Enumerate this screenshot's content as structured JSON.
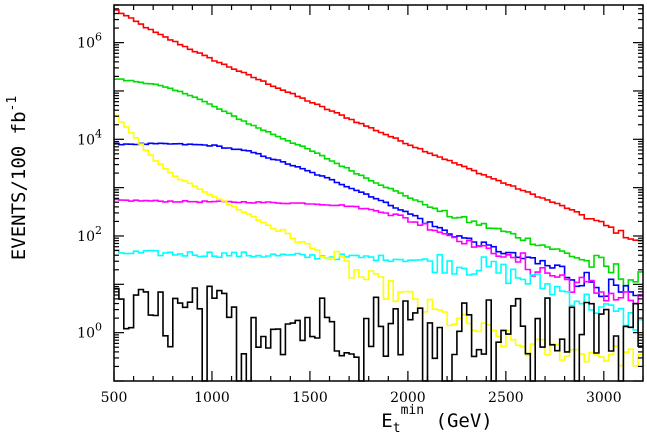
{
  "chart_data": {
    "type": "line",
    "title": "",
    "xlabel": {
      "base": "E",
      "sub": "t",
      "sup": "min",
      "unit": " (GeV)"
    },
    "ylabel": "EVENTS/100 fb",
    "ylabel_sup": "-1",
    "xlim": [
      500,
      3200
    ],
    "ylim": [
      0.1,
      6000000
    ],
    "yscale": "log",
    "x_ticks": [
      500,
      1000,
      1500,
      2000,
      2500,
      3000
    ],
    "x_tick_labels": [
      "500",
      "1000",
      "1500",
      "2000",
      "2500",
      "3000"
    ],
    "y_ticks": [
      1,
      100,
      10000,
      1000000
    ],
    "y_tick_labels": [
      {
        "base": "10",
        "exp": "0"
      },
      {
        "base": "10",
        "exp": "2"
      },
      {
        "base": "10",
        "exp": "4"
      },
      {
        "base": "10",
        "exp": "6"
      }
    ],
    "grid": false,
    "legend": "none",
    "bin_width_gev": 25,
    "series": [
      {
        "color": "#ff0000",
        "kind": "decay",
        "points": [
          [
            500,
            5000000
          ],
          [
            700,
            1700000
          ],
          [
            1000,
            450000
          ],
          [
            1500,
            60000
          ],
          [
            2000,
            8000
          ],
          [
            2500,
            1200
          ],
          [
            2800,
            400
          ],
          [
            3000,
            170
          ],
          [
            3200,
            70
          ]
        ]
      },
      {
        "color": "#00dd00",
        "kind": "decay",
        "points": [
          [
            500,
            180000
          ],
          [
            700,
            140000
          ],
          [
            900,
            80000
          ],
          [
            1000,
            50000
          ],
          [
            1200,
            20000
          ],
          [
            1500,
            6000
          ],
          [
            1800,
            1500
          ],
          [
            2000,
            650
          ],
          [
            2200,
            280
          ],
          [
            2500,
            120
          ],
          [
            2800,
            45
          ],
          [
            3000,
            22
          ],
          [
            3200,
            11
          ]
        ]
      },
      {
        "color": "#0000ff",
        "kind": "decay",
        "points": [
          [
            500,
            8000
          ],
          [
            800,
            8000
          ],
          [
            1000,
            7500
          ],
          [
            1200,
            5500
          ],
          [
            1400,
            3000
          ],
          [
            1600,
            1500
          ],
          [
            1800,
            700
          ],
          [
            2000,
            300
          ],
          [
            2200,
            120
          ],
          [
            2500,
            45
          ],
          [
            2800,
            18
          ],
          [
            3000,
            9
          ],
          [
            3200,
            4
          ]
        ]
      },
      {
        "color": "#ff00ff",
        "kind": "decay",
        "points": [
          [
            500,
            550
          ],
          [
            800,
            520
          ],
          [
            1200,
            500
          ],
          [
            1500,
            470
          ],
          [
            1700,
            420
          ],
          [
            1900,
            300
          ],
          [
            2100,
            160
          ],
          [
            2300,
            75
          ],
          [
            2500,
            38
          ],
          [
            2700,
            18
          ],
          [
            2900,
            9
          ],
          [
            3200,
            4
          ]
        ]
      },
      {
        "color": "#00ffff",
        "kind": "decay",
        "points": [
          [
            500,
            45
          ],
          [
            1000,
            42
          ],
          [
            1500,
            38
          ],
          [
            1800,
            36
          ],
          [
            2000,
            33
          ],
          [
            2200,
            28
          ],
          [
            2400,
            22
          ],
          [
            2600,
            13
          ],
          [
            2800,
            7
          ],
          [
            3000,
            3
          ],
          [
            3200,
            1.5
          ]
        ]
      },
      {
        "color": "#ffff00",
        "kind": "decay",
        "points": [
          [
            500,
            35000
          ],
          [
            600,
            12000
          ],
          [
            700,
            4000
          ],
          [
            800,
            1800
          ],
          [
            1000,
            700
          ],
          [
            1200,
            260
          ],
          [
            1400,
            100
          ],
          [
            1600,
            35
          ],
          [
            1800,
            12
          ],
          [
            2000,
            5
          ],
          [
            2200,
            2
          ],
          [
            2400,
            1
          ],
          [
            2600,
            0.5
          ],
          [
            3200,
            0.3
          ]
        ]
      },
      {
        "color": "#000000",
        "kind": "fluctuating",
        "points": [
          [
            500,
            2
          ],
          [
            1000,
            2
          ],
          [
            1500,
            1.5
          ],
          [
            2000,
            1.5
          ],
          [
            2500,
            1.2
          ],
          [
            3000,
            1
          ],
          [
            3200,
            1
          ]
        ]
      }
    ]
  }
}
